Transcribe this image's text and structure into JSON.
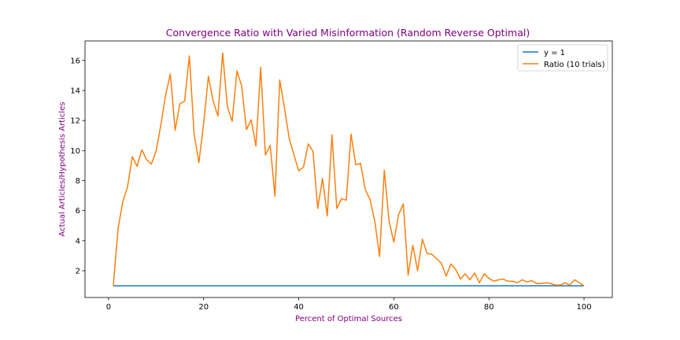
{
  "chart_data": {
    "type": "line",
    "title": "Convergence Ratio with Varied Misinformation (Random Reverse Optimal)",
    "xlabel": "Percent of Optimal Sources",
    "ylabel": "Actual Articles/Hypothesis Articles",
    "xlim": [
      -4.95,
      105.95
    ],
    "ylim": [
      0.22,
      17.3
    ],
    "xticks": [
      0,
      20,
      40,
      60,
      80,
      100
    ],
    "yticks": [
      2,
      4,
      6,
      8,
      10,
      12,
      14,
      16
    ],
    "grid": false,
    "legend_position": "upper right",
    "colors": {
      "title": "#800080",
      "series1": "#1f77b4",
      "series2": "#ff7f0e"
    },
    "series": [
      {
        "name": "y = 1",
        "color": "#1f77b4",
        "x": [
          1,
          100
        ],
        "y": [
          1,
          1
        ]
      },
      {
        "name": "Ratio (10 trials)",
        "color": "#ff7f0e",
        "x": [
          1,
          2,
          3,
          4,
          5,
          6,
          7,
          8,
          9,
          10,
          11,
          12,
          13,
          14,
          15,
          16,
          17,
          18,
          19,
          20,
          21,
          22,
          23,
          24,
          25,
          26,
          27,
          28,
          29,
          30,
          31,
          32,
          33,
          34,
          35,
          36,
          37,
          38,
          39,
          40,
          41,
          42,
          43,
          44,
          45,
          46,
          47,
          48,
          49,
          50,
          51,
          52,
          53,
          54,
          55,
          56,
          57,
          58,
          59,
          60,
          61,
          62,
          63,
          64,
          65,
          66,
          67,
          68,
          69,
          70,
          71,
          72,
          73,
          74,
          75,
          76,
          77,
          78,
          79,
          80,
          81,
          82,
          83,
          84,
          85,
          86,
          87,
          88,
          89,
          90,
          91,
          92,
          93,
          94,
          95,
          96,
          97,
          98,
          99,
          100
        ],
        "y": [
          1.0,
          4.8,
          6.6,
          7.6,
          9.6,
          8.95,
          10.05,
          9.4,
          9.1,
          9.95,
          11.7,
          13.7,
          15.1,
          11.35,
          13.1,
          13.3,
          16.3,
          11.1,
          9.2,
          11.8,
          14.95,
          13.3,
          12.3,
          16.5,
          12.9,
          11.95,
          15.3,
          14.3,
          11.4,
          12.05,
          10.3,
          15.55,
          9.7,
          10.35,
          6.95,
          14.7,
          12.85,
          10.8,
          9.7,
          8.65,
          8.9,
          10.45,
          9.95,
          6.15,
          8.15,
          5.65,
          11.05,
          6.15,
          6.8,
          6.7,
          11.1,
          9.05,
          9.15,
          7.4,
          6.75,
          5.3,
          2.95,
          8.7,
          5.3,
          3.9,
          5.75,
          6.45,
          1.7,
          3.7,
          2.0,
          4.1,
          3.15,
          3.1,
          2.8,
          2.5,
          1.65,
          2.45,
          2.1,
          1.45,
          1.8,
          1.4,
          1.85,
          1.2,
          1.8,
          1.5,
          1.3,
          1.4,
          1.45,
          1.3,
          1.3,
          1.2,
          1.4,
          1.25,
          1.35,
          1.15,
          1.15,
          1.2,
          1.15,
          1.05,
          1.05,
          1.2,
          1.05,
          1.4,
          1.2,
          1.0
        ]
      }
    ]
  }
}
